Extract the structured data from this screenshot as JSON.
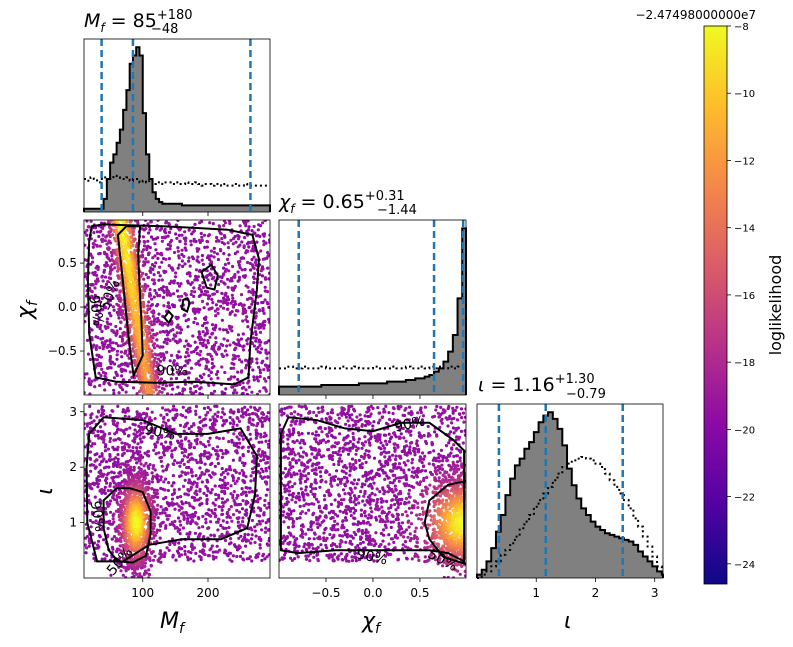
{
  "chart_data": {
    "type": "corner",
    "parameters": [
      {
        "key": "mf",
        "label": "M",
        "sub": "f"
      },
      {
        "key": "chi",
        "label": "χ",
        "sub": "f"
      },
      {
        "key": "iota",
        "label": "ι",
        "sub": ""
      }
    ],
    "titles": {
      "mf": {
        "prefix": "M",
        "sub": "f",
        "eq": " = 85",
        "plus": "+180",
        "minus": "−48"
      },
      "chi": {
        "prefix": "χ",
        "sub": "f",
        "eq": " = 0.65",
        "plus": "+0.31",
        "minus": "−1.44"
      },
      "iota": {
        "prefix": "ι",
        "sub": "",
        "eq": " = 1.16",
        "plus": "+1.30",
        "minus": "−0.79"
      }
    },
    "ranges": {
      "mf": [
        10,
        295
      ],
      "chi": [
        -1.0,
        0.99
      ],
      "iota": [
        0.0,
        3.14
      ]
    },
    "ticks": {
      "mf": [
        {
          "v": 100,
          "label": "100"
        },
        {
          "v": 200,
          "label": "200"
        }
      ],
      "chi": [
        {
          "v": -0.5,
          "label": "−0.5"
        },
        {
          "v": 0.0,
          "label": "0.0"
        },
        {
          "v": 0.5,
          "label": "0.5"
        }
      ],
      "iota": [
        {
          "v": 1,
          "label": "1"
        },
        {
          "v": 2,
          "label": "2"
        },
        {
          "v": 3,
          "label": "3"
        }
      ]
    },
    "quantiles": {
      "mf": [
        37,
        85,
        265
      ],
      "chi": [
        -0.79,
        0.65,
        0.96
      ],
      "iota": [
        0.37,
        1.16,
        2.46
      ]
    },
    "histograms": {
      "mf": {
        "bins_from": 10,
        "bin_width": 5,
        "posterior": [
          0.02,
          0.02,
          0.02,
          0.02,
          0.02,
          0.02,
          0.08,
          0.2,
          0.3,
          0.35,
          0.42,
          0.5,
          0.62,
          0.74,
          0.9,
          0.95,
          1.0,
          0.95,
          0.6,
          0.35,
          0.2,
          0.12,
          0.08,
          0.06,
          0.05,
          0.05,
          0.05,
          0.05,
          0.05,
          0.05,
          0.04,
          0.04,
          0.04,
          0.04,
          0.04,
          0.04,
          0.04,
          0.04,
          0.04,
          0.04,
          0.04,
          0.04,
          0.04,
          0.04,
          0.04,
          0.04,
          0.04,
          0.04,
          0.04,
          0.04,
          0.04,
          0.04,
          0.04,
          0.04,
          0.04,
          0.04,
          0.04
        ],
        "prior": [
          0.2,
          0.19,
          0.21,
          0.2,
          0.18,
          0.2,
          0.21,
          0.19,
          0.2,
          0.22,
          0.21,
          0.2,
          0.2,
          0.21,
          0.19,
          0.2,
          0.2,
          0.18,
          0.19,
          0.18,
          0.19,
          0.17,
          0.18,
          0.18,
          0.17,
          0.18,
          0.18,
          0.17,
          0.18,
          0.17,
          0.17,
          0.18,
          0.17,
          0.17,
          0.18,
          0.17,
          0.16,
          0.17,
          0.17,
          0.16,
          0.17,
          0.17,
          0.16,
          0.17,
          0.16,
          0.16,
          0.17,
          0.16,
          0.16,
          0.17,
          0.16,
          0.16,
          0.16,
          0.16,
          0.16,
          0.16,
          0.16
        ]
      },
      "chi": {
        "bins_from": -1.0,
        "bin_width": 0.05,
        "posterior": [
          0.05,
          0.05,
          0.05,
          0.05,
          0.05,
          0.05,
          0.05,
          0.05,
          0.05,
          0.06,
          0.06,
          0.06,
          0.06,
          0.06,
          0.06,
          0.06,
          0.06,
          0.07,
          0.07,
          0.07,
          0.07,
          0.07,
          0.07,
          0.08,
          0.08,
          0.08,
          0.08,
          0.09,
          0.09,
          0.1,
          0.1,
          0.11,
          0.12,
          0.14,
          0.16,
          0.2,
          0.26,
          0.36,
          0.58,
          1.0
        ],
        "prior": [
          0.16,
          0.16,
          0.17,
          0.16,
          0.16,
          0.17,
          0.16,
          0.16,
          0.16,
          0.17,
          0.16,
          0.16,
          0.16,
          0.17,
          0.16,
          0.16,
          0.17,
          0.16,
          0.16,
          0.16,
          0.17,
          0.16,
          0.16,
          0.16,
          0.17,
          0.16,
          0.16,
          0.17,
          0.16,
          0.16,
          0.17,
          0.16,
          0.17,
          0.16,
          0.17,
          0.16,
          0.17,
          0.16,
          0.17,
          0.17
        ]
      },
      "iota": {
        "bins_from": 0.0,
        "bin_width": 0.08,
        "posterior": [
          0.02,
          0.05,
          0.1,
          0.18,
          0.28,
          0.38,
          0.5,
          0.6,
          0.68,
          0.72,
          0.78,
          0.82,
          0.88,
          0.94,
          0.98,
          1.0,
          0.96,
          0.9,
          0.8,
          0.66,
          0.56,
          0.48,
          0.42,
          0.38,
          0.34,
          0.31,
          0.29,
          0.27,
          0.26,
          0.25,
          0.24,
          0.23,
          0.22,
          0.2,
          0.16,
          0.13,
          0.1,
          0.07,
          0.04,
          0.02
        ],
        "prior": [
          0.0,
          0.02,
          0.04,
          0.07,
          0.1,
          0.14,
          0.17,
          0.21,
          0.25,
          0.3,
          0.34,
          0.38,
          0.43,
          0.47,
          0.51,
          0.55,
          0.59,
          0.63,
          0.67,
          0.69,
          0.71,
          0.72,
          0.73,
          0.72,
          0.71,
          0.69,
          0.67,
          0.63,
          0.59,
          0.55,
          0.51,
          0.47,
          0.42,
          0.36,
          0.31,
          0.25,
          0.19,
          0.13,
          0.07,
          0.02
        ]
      }
    },
    "contour_labels": {
      "p50": "50%",
      "p90": "90%"
    },
    "contours": {
      "mf_chi": {
        "p90": [
          [
            22,
            0.92
          ],
          [
            40,
            0.94
          ],
          [
            80,
            0.93
          ],
          [
            130,
            0.92
          ],
          [
            180,
            0.9
          ],
          [
            230,
            0.88
          ],
          [
            268,
            0.82
          ],
          [
            278,
            0.55
          ],
          [
            275,
            0.2
          ],
          [
            265,
            -0.4
          ],
          [
            262,
            -0.8
          ],
          [
            240,
            -0.88
          ],
          [
            180,
            -0.85
          ],
          [
            120,
            -0.86
          ],
          [
            60,
            -0.85
          ],
          [
            28,
            -0.8
          ],
          [
            18,
            -0.3
          ],
          [
            16,
            0.3
          ],
          [
            18,
            0.75
          ]
        ],
        "p50": [
          [
            62,
            0.82
          ],
          [
            68,
            0.4
          ],
          [
            75,
            -0.1
          ],
          [
            80,
            -0.45
          ],
          [
            86,
            -0.78
          ],
          [
            100,
            -0.55
          ],
          [
            98,
            -0.15
          ],
          [
            95,
            0.25
          ],
          [
            93,
            0.6
          ],
          [
            96,
            0.92
          ],
          [
            75,
            0.92
          ]
        ],
        "island1": [
          [
            190,
            0.4
          ],
          [
            205,
            0.48
          ],
          [
            215,
            0.36
          ],
          [
            210,
            0.2
          ],
          [
            198,
            0.22
          ]
        ],
        "island2": [
          [
            168,
            0.1
          ],
          [
            172,
            0.05
          ],
          [
            168,
            -0.05
          ],
          [
            160,
            -0.02
          ],
          [
            162,
            0.08
          ]
        ],
        "island3": [
          [
            140,
            -0.05
          ],
          [
            146,
            -0.1
          ],
          [
            140,
            -0.18
          ],
          [
            133,
            -0.12
          ]
        ]
      },
      "mf_iota": {
        "p90": [
          [
            18,
            2.6
          ],
          [
            40,
            2.9
          ],
          [
            100,
            2.85
          ],
          [
            150,
            2.6
          ],
          [
            200,
            2.6
          ],
          [
            250,
            2.7
          ],
          [
            275,
            2.2
          ],
          [
            272,
            1.5
          ],
          [
            260,
            0.9
          ],
          [
            220,
            0.7
          ],
          [
            160,
            0.7
          ],
          [
            110,
            0.6
          ],
          [
            70,
            0.3
          ],
          [
            30,
            0.3
          ],
          [
            15,
            1.0
          ],
          [
            14,
            2.0
          ]
        ],
        "p50": [
          [
            40,
            1.4
          ],
          [
            60,
            1.62
          ],
          [
            80,
            1.62
          ],
          [
            100,
            1.55
          ],
          [
            112,
            1.2
          ],
          [
            112,
            0.8
          ],
          [
            105,
            0.4
          ],
          [
            85,
            0.28
          ],
          [
            62,
            0.3
          ],
          [
            48,
            0.5
          ],
          [
            40,
            0.9
          ]
        ]
      },
      "chi_iota": {
        "p90": [
          [
            -0.98,
            2.6
          ],
          [
            -0.9,
            2.9
          ],
          [
            -0.6,
            2.85
          ],
          [
            -0.3,
            2.7
          ],
          [
            0.0,
            2.65
          ],
          [
            0.3,
            2.8
          ],
          [
            0.6,
            2.8
          ],
          [
            0.85,
            2.5
          ],
          [
            0.97,
            2.3
          ],
          [
            0.97,
            0.3
          ],
          [
            0.8,
            0.45
          ],
          [
            0.6,
            0.5
          ],
          [
            0.3,
            0.5
          ],
          [
            0.0,
            0.5
          ],
          [
            -0.4,
            0.5
          ],
          [
            -0.8,
            0.45
          ],
          [
            -0.98,
            0.5
          ]
        ],
        "p50": [
          [
            0.99,
            1.75
          ],
          [
            0.8,
            1.68
          ],
          [
            0.6,
            1.4
          ],
          [
            0.55,
            1.0
          ],
          [
            0.6,
            0.7
          ],
          [
            0.75,
            0.38
          ],
          [
            0.99,
            0.25
          ]
        ]
      }
    },
    "colorbar": {
      "label": "loglikelihood",
      "offset": "−2.47498000000e7",
      "ticks": [
        {
          "v": -8,
          "label": "−8"
        },
        {
          "v": -10,
          "label": "−10"
        },
        {
          "v": -12,
          "label": "−12"
        },
        {
          "v": -14,
          "label": "−14"
        },
        {
          "v": -16,
          "label": "−16"
        },
        {
          "v": -18,
          "label": "−18"
        },
        {
          "v": -20,
          "label": "−20"
        },
        {
          "v": -22,
          "label": "−22"
        },
        {
          "v": -24,
          "label": "−24"
        }
      ],
      "range": [
        -24.6,
        -8
      ],
      "colormap": "plasma",
      "colors": [
        "#0d0887",
        "#5302a3",
        "#8b0aa5",
        "#b83289",
        "#db5c68",
        "#f48849",
        "#febd2a",
        "#f0f921"
      ]
    },
    "colors": {
      "hist_fill": "#808080",
      "quantile_line": "#1f77b4",
      "contour": "#000000"
    }
  }
}
